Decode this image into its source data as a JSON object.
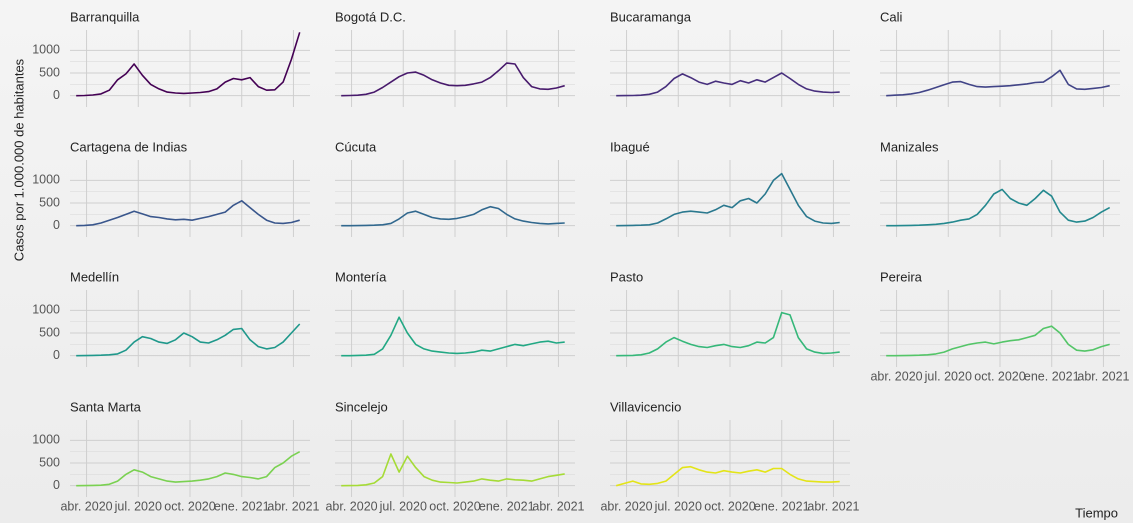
{
  "chart_data": {
    "type": "line",
    "ylabel": "Casos por 1.000.000 de habitantes",
    "xlabel": "Tiempo",
    "x": [
      2020.2,
      2020.24,
      2020.28,
      2020.32,
      2020.36,
      2020.4,
      2020.44,
      2020.48,
      2020.52,
      2020.56,
      2020.6,
      2020.64,
      2020.68,
      2020.72,
      2020.76,
      2020.8,
      2020.84,
      2020.88,
      2020.92,
      2020.96,
      2021.0,
      2021.04,
      2021.08,
      2021.12,
      2021.16,
      2021.2,
      2021.24,
      2021.28
    ],
    "xlim": [
      2020.17,
      2021.33
    ],
    "xticks": [
      {
        "value": 2020.25,
        "label": "abr. 2020"
      },
      {
        "value": 2020.5,
        "label": "jul. 2020"
      },
      {
        "value": 2020.75,
        "label": "oct. 2020"
      },
      {
        "value": 2021.0,
        "label": "ene. 2021"
      },
      {
        "value": 2021.25,
        "label": "abr. 2021"
      }
    ],
    "ylim": [
      -250,
      1450
    ],
    "yticks": [
      0,
      500,
      1000
    ],
    "yminor": [
      250,
      750
    ],
    "grid": true,
    "series": [
      {
        "name": "Barranquilla",
        "color": "#440154",
        "values": [
          0,
          5,
          15,
          40,
          120,
          350,
          480,
          700,
          450,
          250,
          150,
          80,
          60,
          50,
          60,
          70,
          90,
          150,
          300,
          380,
          350,
          400,
          200,
          120,
          130,
          300,
          800,
          1400
        ]
      },
      {
        "name": "Bogotá D.C.",
        "color": "#481a6c",
        "values": [
          0,
          5,
          10,
          30,
          80,
          180,
          300,
          420,
          500,
          520,
          450,
          350,
          280,
          230,
          220,
          230,
          260,
          300,
          400,
          550,
          720,
          700,
          400,
          200,
          150,
          140,
          170,
          220
        ]
      },
      {
        "name": "Bucaramanga",
        "color": "#472f7d",
        "values": [
          0,
          2,
          5,
          10,
          30,
          80,
          200,
          380,
          480,
          400,
          300,
          250,
          320,
          280,
          250,
          330,
          280,
          350,
          300,
          400,
          500,
          380,
          250,
          150,
          100,
          80,
          70,
          80
        ]
      },
      {
        "name": "Cali",
        "color": "#414487",
        "values": [
          0,
          10,
          20,
          40,
          70,
          120,
          180,
          240,
          300,
          310,
          250,
          200,
          190,
          200,
          210,
          220,
          240,
          260,
          290,
          300,
          420,
          560,
          250,
          150,
          140,
          160,
          180,
          220
        ]
      },
      {
        "name": "Cartagena de Indias",
        "color": "#39568c",
        "values": [
          0,
          5,
          20,
          60,
          120,
          180,
          250,
          320,
          260,
          200,
          180,
          150,
          130,
          140,
          120,
          160,
          200,
          250,
          300,
          450,
          550,
          400,
          250,
          120,
          60,
          50,
          70,
          120
        ]
      },
      {
        "name": "Cúcuta",
        "color": "#31688e",
        "values": [
          0,
          0,
          2,
          5,
          10,
          20,
          50,
          150,
          280,
          320,
          250,
          180,
          150,
          140,
          160,
          200,
          250,
          350,
          420,
          380,
          250,
          150,
          100,
          70,
          50,
          40,
          50,
          60
        ]
      },
      {
        "name": "Ibagué",
        "color": "#2a788e",
        "values": [
          0,
          2,
          5,
          10,
          20,
          60,
          150,
          250,
          300,
          320,
          300,
          280,
          350,
          450,
          400,
          550,
          600,
          500,
          700,
          1000,
          1150,
          800,
          450,
          200,
          100,
          60,
          50,
          70
        ]
      },
      {
        "name": "Manizales",
        "color": "#23888e",
        "values": [
          0,
          0,
          2,
          5,
          10,
          20,
          30,
          50,
          80,
          120,
          150,
          250,
          450,
          700,
          800,
          600,
          500,
          450,
          600,
          780,
          650,
          300,
          120,
          80,
          100,
          180,
          300,
          400
        ]
      },
      {
        "name": "Medellín",
        "color": "#1f988b",
        "values": [
          0,
          2,
          5,
          10,
          20,
          40,
          120,
          300,
          420,
          380,
          300,
          270,
          350,
          500,
          420,
          300,
          280,
          350,
          450,
          580,
          600,
          350,
          200,
          150,
          180,
          300,
          500,
          700
        ]
      },
      {
        "name": "Montería",
        "color": "#22a884",
        "values": [
          0,
          0,
          5,
          10,
          30,
          150,
          450,
          850,
          500,
          250,
          150,
          100,
          80,
          60,
          50,
          60,
          80,
          120,
          100,
          150,
          200,
          250,
          220,
          260,
          300,
          320,
          280,
          300
        ]
      },
      {
        "name": "Pasto",
        "color": "#35b779",
        "values": [
          0,
          2,
          5,
          20,
          60,
          150,
          300,
          400,
          320,
          250,
          200,
          180,
          220,
          250,
          200,
          180,
          220,
          300,
          280,
          400,
          950,
          900,
          400,
          150,
          80,
          50,
          60,
          80
        ]
      },
      {
        "name": "Pereira",
        "color": "#54c568",
        "values": [
          0,
          0,
          2,
          5,
          10,
          20,
          40,
          80,
          150,
          200,
          250,
          280,
          300,
          260,
          300,
          330,
          350,
          400,
          450,
          600,
          650,
          500,
          250,
          120,
          100,
          130,
          200,
          250
        ]
      },
      {
        "name": "Santa Marta",
        "color": "#7ad151",
        "values": [
          0,
          2,
          5,
          10,
          30,
          100,
          250,
          350,
          300,
          200,
          150,
          100,
          80,
          90,
          100,
          120,
          150,
          200,
          280,
          250,
          200,
          180,
          150,
          200,
          400,
          500,
          650,
          750
        ]
      },
      {
        "name": "Sincelejo",
        "color": "#a5db36",
        "values": [
          0,
          2,
          5,
          20,
          60,
          200,
          700,
          300,
          650,
          400,
          200,
          120,
          80,
          70,
          60,
          80,
          100,
          150,
          120,
          100,
          150,
          130,
          120,
          100,
          150,
          200,
          230,
          260
        ]
      },
      {
        "name": "Villavicencio",
        "color": "#e3e418",
        "values": [
          0,
          50,
          100,
          40,
          30,
          50,
          100,
          250,
          400,
          420,
          350,
          300,
          280,
          330,
          300,
          280,
          320,
          350,
          300,
          380,
          380,
          250,
          150,
          100,
          90,
          80,
          80,
          90
        ]
      }
    ]
  }
}
